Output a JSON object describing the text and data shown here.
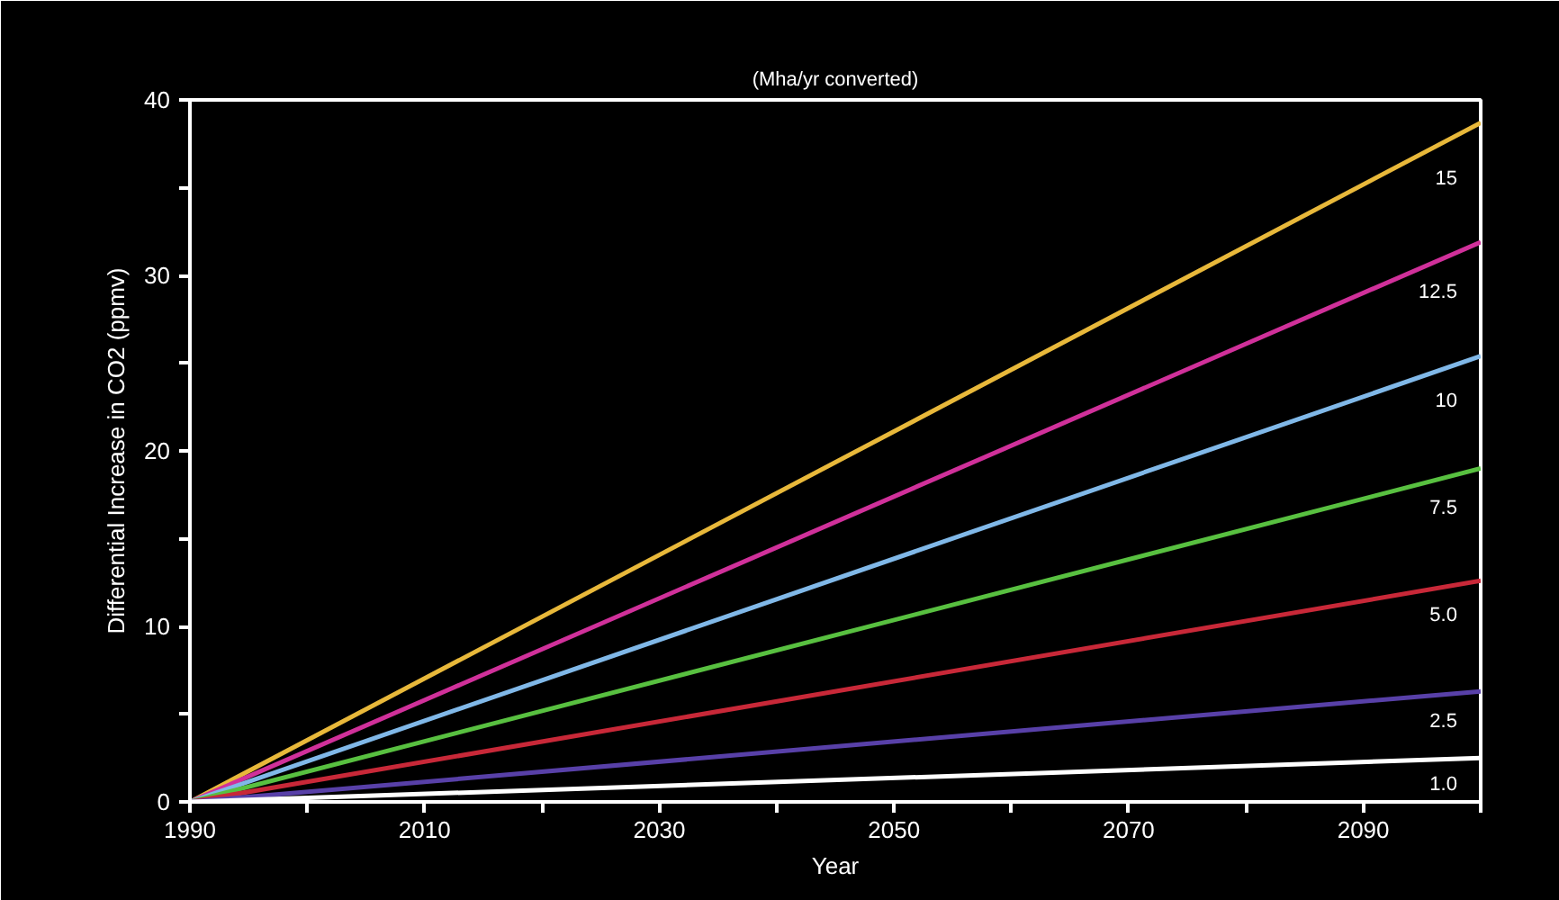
{
  "chart_data": {
    "type": "line",
    "title": "(Mha/yr converted)",
    "xlabel": "Year",
    "ylabel": "Differential Increase in CO2 (ppmv)",
    "x": [
      1990,
      2100
    ],
    "series": [
      {
        "name": "15",
        "color": "#e8b83a",
        "values": [
          0,
          38.7
        ]
      },
      {
        "name": "12.5",
        "color": "#d0309a",
        "values": [
          0,
          31.9
        ]
      },
      {
        "name": "10",
        "color": "#80b8e8",
        "values": [
          0,
          25.4
        ]
      },
      {
        "name": "7.5",
        "color": "#58c040",
        "values": [
          0,
          19.0
        ]
      },
      {
        "name": "5.0",
        "color": "#c82838",
        "values": [
          0,
          12.6
        ]
      },
      {
        "name": "2.5",
        "color": "#5840a8",
        "values": [
          0,
          6.3
        ]
      },
      {
        "name": "1.0",
        "color": "#ffffff",
        "values": [
          0,
          2.5
        ]
      }
    ],
    "xlim": [
      1990,
      2100
    ],
    "ylim": [
      0,
      40
    ],
    "xticks": [
      1990,
      {
        "value": 2000,
        "label": null
      },
      2010,
      {
        "value": 2020,
        "label": null
      },
      2030,
      {
        "value": 2040,
        "label": null
      },
      2050,
      {
        "value": 2060,
        "label": null
      },
      2070,
      {
        "value": 2080,
        "label": null
      },
      2090,
      {
        "value": 2100,
        "label": null
      }
    ],
    "yticks": [
      0,
      {
        "value": 5,
        "label": null
      },
      10,
      {
        "value": 15,
        "label": null
      },
      20,
      {
        "value": 25,
        "label": null
      },
      30,
      {
        "value": 35,
        "label": null
      },
      40
    ],
    "grid": false,
    "legend": false,
    "line_style": "solid",
    "marker": "none"
  }
}
